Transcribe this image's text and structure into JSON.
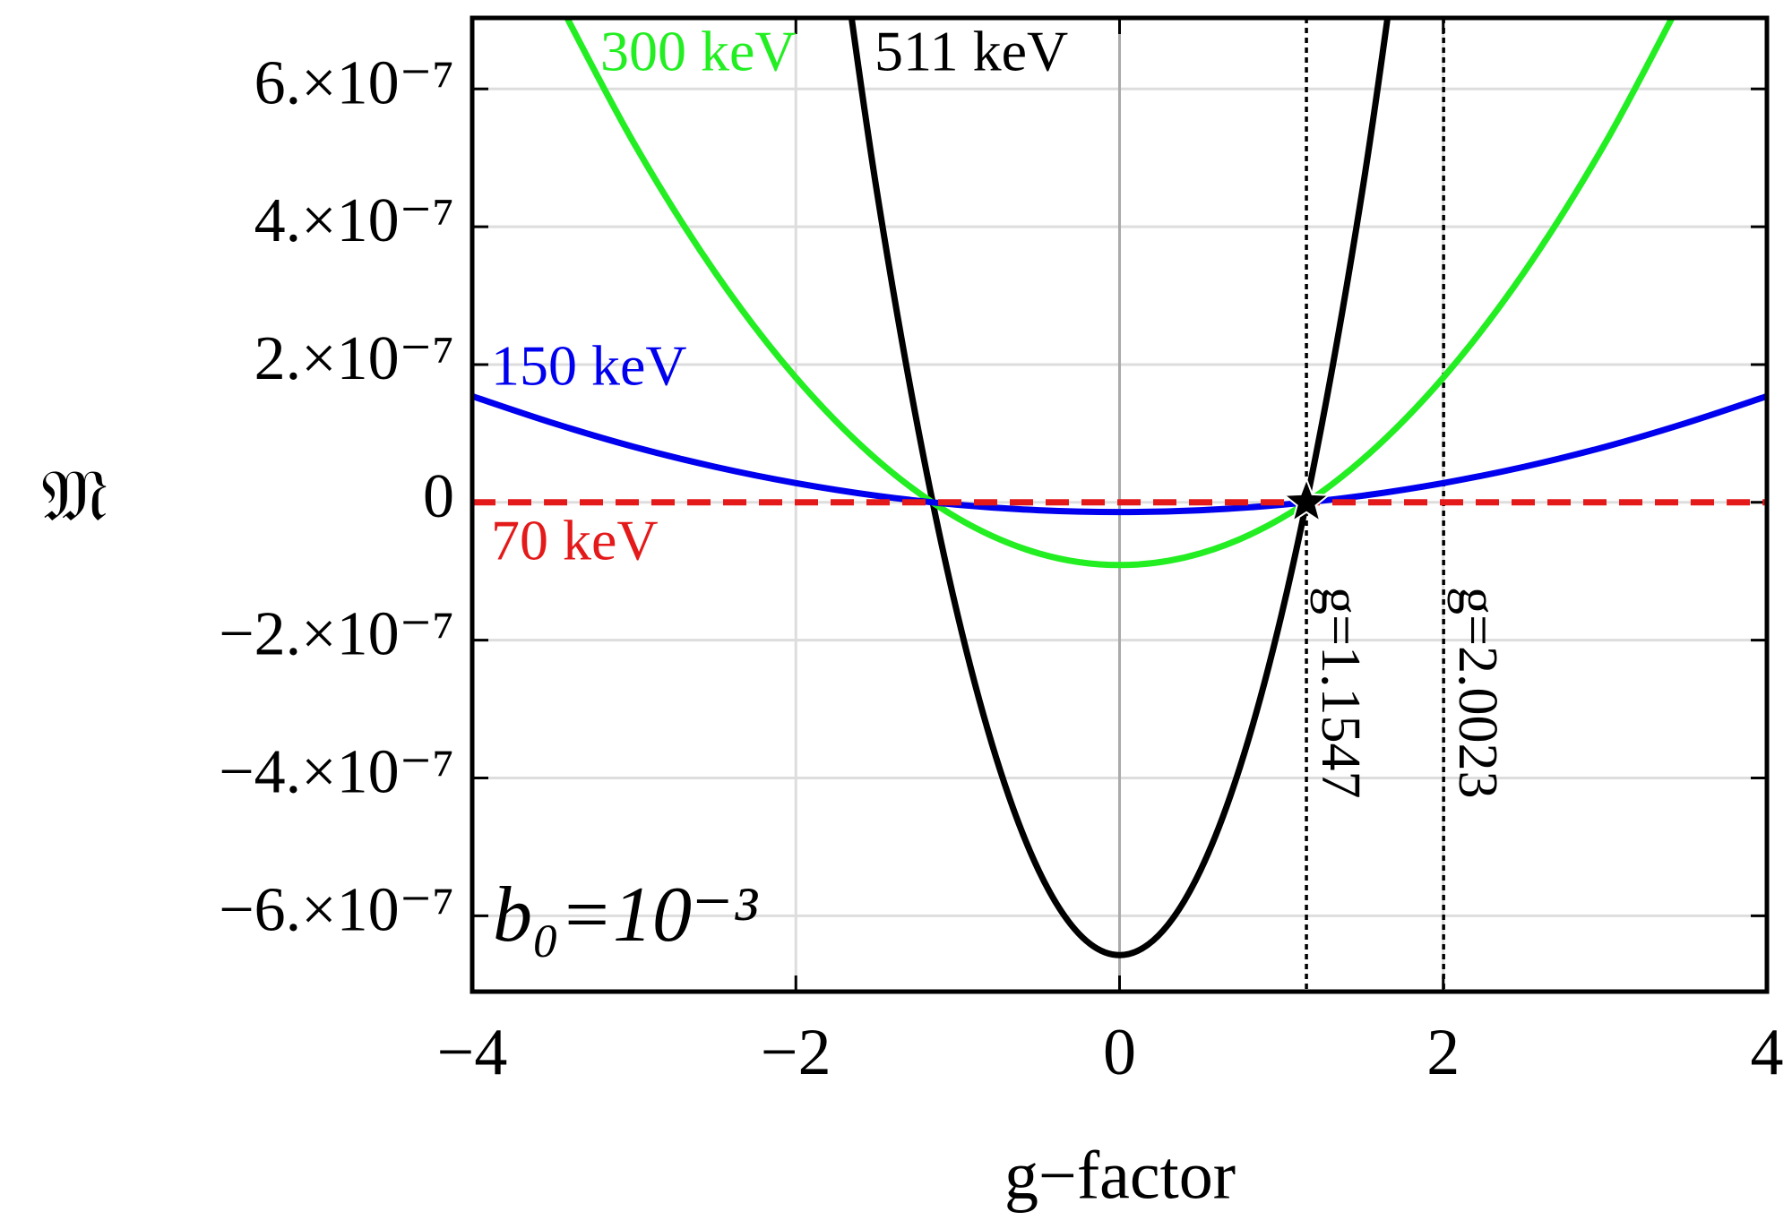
{
  "chart_data": {
    "type": "line",
    "xlabel": "g−factor",
    "ylabel": "𝔐",
    "annotation": "b₀=10⁻³",
    "x": [
      -4,
      -3.5,
      -3,
      -2.5,
      -2,
      -1.5,
      -1,
      -0.5,
      0,
      0.5,
      1,
      1.5,
      2,
      2.5,
      3,
      3.5,
      4
    ],
    "series": [
      {
        "name": "511 keV",
        "color": "#000000",
        "style": "solid",
        "values": [
          null,
          null,
          null,
          null,
          1.315e-06,
          4.52e-07,
          -1.64e-07,
          -5.34e-07,
          -6.57e-07,
          -5.34e-07,
          -1.64e-07,
          4.52e-07,
          1.315e-06,
          null,
          null,
          null,
          null
        ]
      },
      {
        "name": "300 keV",
        "color": "#22ee22",
        "style": "solid",
        "values": [
          null,
          7.42e-07,
          5.21e-07,
          3.34e-07,
          1.81e-07,
          6.2e-08,
          -2.3e-08,
          -7.4e-08,
          -9.1e-08,
          -7.4e-08,
          -2.3e-08,
          6.2e-08,
          1.81e-07,
          3.34e-07,
          5.21e-07,
          7.42e-07,
          null
        ]
      },
      {
        "name": "150 keV",
        "color": "#0000ee",
        "style": "solid",
        "values": [
          1.54e-07,
          1.15e-07,
          8.05e-08,
          5.16e-08,
          2.8e-08,
          9.6e-09,
          -3.5e-09,
          -1.14e-08,
          -1.4e-08,
          -1.14e-08,
          -3.5e-09,
          9.6e-09,
          2.8e-08,
          5.16e-08,
          8.05e-08,
          1.15e-07,
          1.54e-07
        ]
      },
      {
        "name": "70 keV",
        "color": "#e41a1a",
        "style": "dashed",
        "values": [
          0,
          0,
          0,
          0,
          0,
          0,
          0,
          0,
          0,
          0,
          0,
          0,
          0,
          0,
          0,
          0,
          0
        ]
      }
    ],
    "vlines": [
      {
        "x": 1.1547,
        "label": "g=1.1547"
      },
      {
        "x": 2.0023,
        "label": "g=2.0023"
      }
    ],
    "marker": {
      "x": 1.1547,
      "y": 0
    },
    "xlim": [
      -4,
      4
    ],
    "ylim": [
      -7.1e-07,
      7.03e-07
    ],
    "xticks": [
      {
        "value": -4,
        "label": "−4"
      },
      {
        "value": -2,
        "label": "−2"
      },
      0,
      2,
      4
    ],
    "yticks": [
      {
        "value": -6e-07,
        "label": "−6.×10⁻⁷"
      },
      {
        "value": -4e-07,
        "label": "−4.×10⁻⁷"
      },
      {
        "value": -2e-07,
        "label": "−2.×10⁻⁷"
      },
      0,
      {
        "value": 2e-07,
        "label": "2.×10⁻⁷"
      },
      {
        "value": 4e-07,
        "label": "4.×10⁻⁷"
      },
      {
        "value": 6e-07,
        "label": "6.×10⁻⁷"
      }
    ],
    "grid": true
  }
}
